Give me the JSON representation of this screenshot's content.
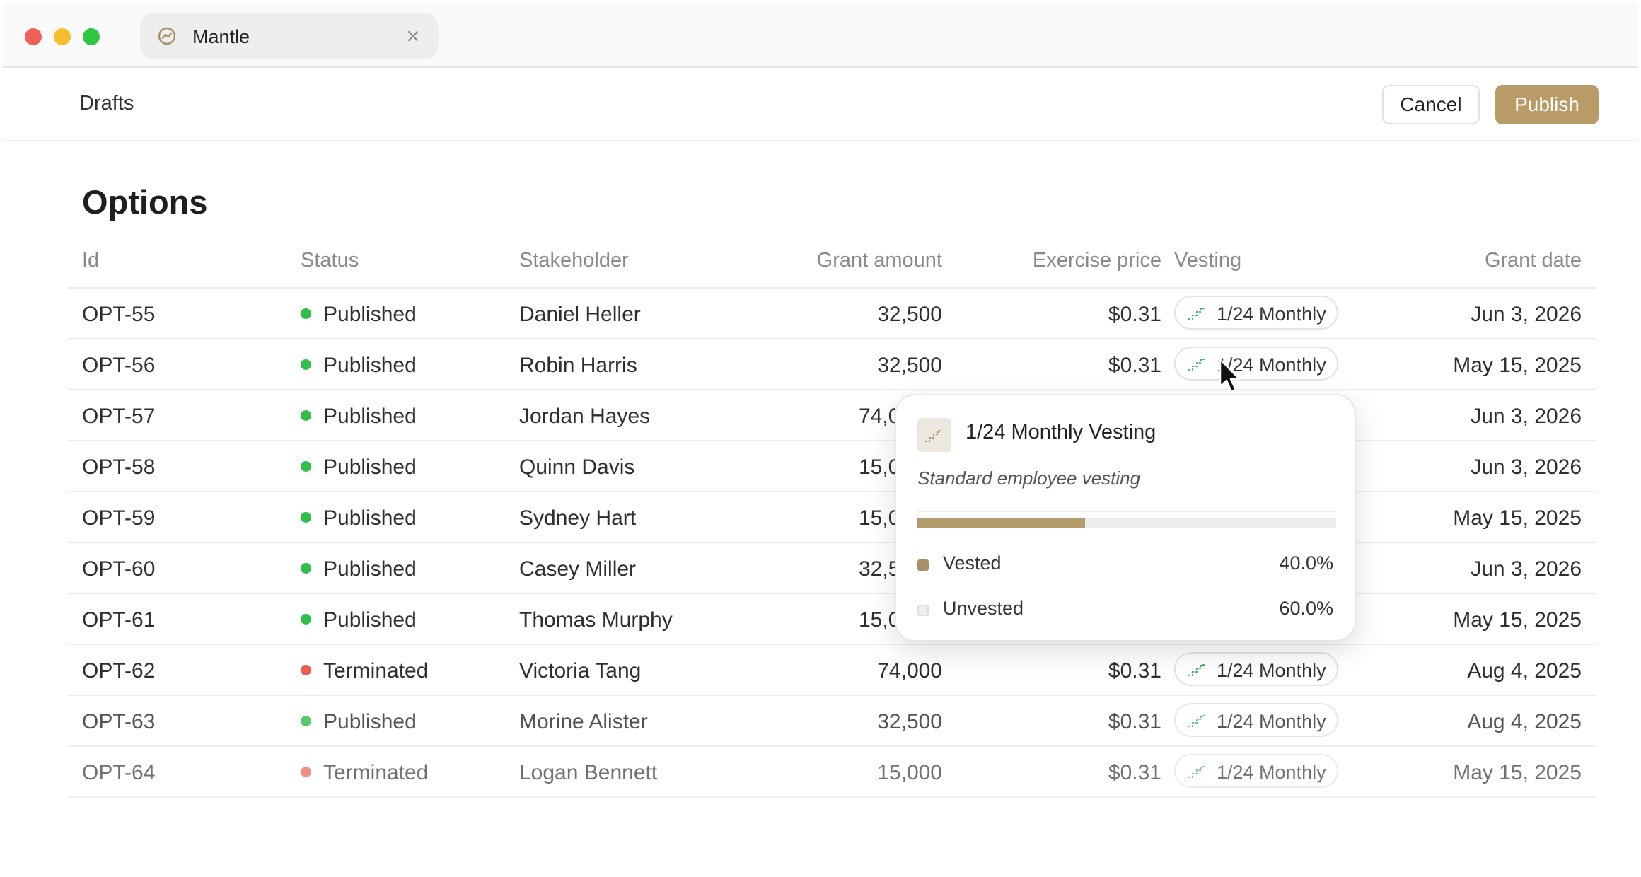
{
  "tab": {
    "title": "Mantle"
  },
  "header": {
    "breadcrumb": "Drafts",
    "cancel_label": "Cancel",
    "publish_label": "Publish"
  },
  "page": {
    "title": "Options"
  },
  "table": {
    "columns": [
      "Id",
      "Status",
      "Stakeholder",
      "Grant amount",
      "Exercise price",
      "Vesting",
      "Grant date"
    ],
    "rows": [
      {
        "id": "OPT-55",
        "status": "Published",
        "stakeholder": "Daniel Heller",
        "grant_amount": "32,500",
        "exercise_price": "$0.31",
        "vesting": "1/24 Monthly",
        "grant_date": "Jun 3, 2026"
      },
      {
        "id": "OPT-56",
        "status": "Published",
        "stakeholder": "Robin Harris",
        "grant_amount": "32,500",
        "exercise_price": "$0.31",
        "vesting": "1/24 Monthly",
        "grant_date": "May 15, 2025"
      },
      {
        "id": "OPT-57",
        "status": "Published",
        "stakeholder": "Jordan Hayes",
        "grant_amount": "74,0",
        "exercise_price": "",
        "vesting": "",
        "grant_date": "Jun 3, 2026"
      },
      {
        "id": "OPT-58",
        "status": "Published",
        "stakeholder": "Quinn Davis",
        "grant_amount": "15,0",
        "exercise_price": "",
        "vesting": "",
        "grant_date": "Jun 3, 2026"
      },
      {
        "id": "OPT-59",
        "status": "Published",
        "stakeholder": "Sydney Hart",
        "grant_amount": "15,0",
        "exercise_price": "",
        "vesting": "",
        "grant_date": "May 15, 2025"
      },
      {
        "id": "OPT-60",
        "status": "Published",
        "stakeholder": "Casey Miller",
        "grant_amount": "32,5",
        "exercise_price": "",
        "vesting": "",
        "grant_date": "Jun 3, 2026"
      },
      {
        "id": "OPT-61",
        "status": "Published",
        "stakeholder": "Thomas Murphy",
        "grant_amount": "15,0",
        "exercise_price": "",
        "vesting": "",
        "grant_date": "May 15, 2025"
      },
      {
        "id": "OPT-62",
        "status": "Terminated",
        "stakeholder": "Victoria Tang",
        "grant_amount": "74,000",
        "exercise_price": "$0.31",
        "vesting": "1/24 Monthly",
        "grant_date": "Aug 4, 2025"
      },
      {
        "id": "OPT-63",
        "status": "Published",
        "stakeholder": "Morine Alister",
        "grant_amount": "32,500",
        "exercise_price": "$0.31",
        "vesting": "1/24 Monthly",
        "grant_date": "Aug 4, 2025"
      },
      {
        "id": "OPT-64",
        "status": "Terminated",
        "stakeholder": "Logan Bennett",
        "grant_amount": "15,000",
        "exercise_price": "$0.31",
        "vesting": "1/24 Monthly",
        "grant_date": "May 15, 2025"
      }
    ]
  },
  "popover": {
    "title": "1/24 Monthly Vesting",
    "description": "Standard employee vesting",
    "vested_fraction": 0.4,
    "vested_label": "Vested",
    "vested_value": "40.0%",
    "unvested_label": "Unvested",
    "unvested_value": "60.0%"
  },
  "colors": {
    "accent": "#b99b68",
    "published": "#2fbf4a",
    "terminated": "#ef5b4c",
    "vested": "#a8906a",
    "unvested": "#e6e6e6",
    "vesting_icon": "#48b86a"
  },
  "icons": {
    "tab": "mantle-logo-icon",
    "close": "close-icon",
    "vesting": "stairs-icon",
    "cursor": "pointer-cursor-icon"
  }
}
